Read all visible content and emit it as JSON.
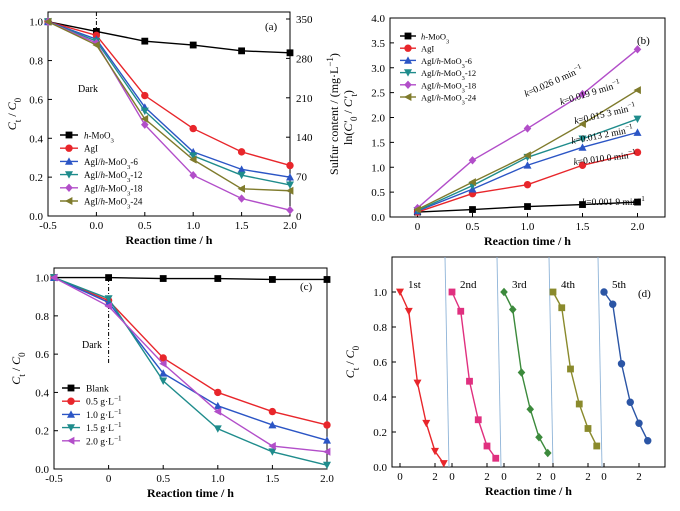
{
  "chart_data": [
    {
      "panel": "(a)",
      "type": "line",
      "xlabel": "Reaction time / h",
      "ylabel": "C_t / C_0",
      "y2label": "Sulfur content / (mg·L⁻¹)",
      "xlim": [
        -0.5,
        2.0
      ],
      "ylim": [
        0.0,
        1.05
      ],
      "y2lim": [
        0,
        350
      ],
      "xticks": [
        "-0.5",
        "0.0",
        "0.5",
        "1.0",
        "1.5",
        "2.0"
      ],
      "yticks": [
        "0.0",
        "0.2",
        "0.4",
        "0.6",
        "0.8",
        "1.0"
      ],
      "y2ticks": [
        "0",
        "70",
        "140",
        "210",
        "280",
        "350"
      ],
      "annotation": "Dark",
      "dark_x": 0,
      "legend_position": "left",
      "series": [
        {
          "name": "h-MoO3",
          "color": "#000000",
          "marker": "square",
          "x": [
            -0.5,
            0,
            0.5,
            1.0,
            1.5,
            2.0
          ],
          "y": [
            1.0,
            0.95,
            0.9,
            0.88,
            0.85,
            0.84
          ]
        },
        {
          "name": "AgI",
          "color": "#e8262b",
          "marker": "circle",
          "x": [
            -0.5,
            0,
            0.5,
            1.0,
            1.5,
            2.0
          ],
          "y": [
            1.0,
            0.93,
            0.62,
            0.45,
            0.33,
            0.26
          ]
        },
        {
          "name": "AgI/h-MoO3-6",
          "color": "#2b55c5",
          "marker": "triangle-up",
          "x": [
            -0.5,
            0,
            0.5,
            1.0,
            1.5,
            2.0
          ],
          "y": [
            1.0,
            0.91,
            0.56,
            0.33,
            0.24,
            0.2
          ]
        },
        {
          "name": "AgI/h-MoO3-12",
          "color": "#1f8c8c",
          "marker": "triangle-down",
          "x": [
            -0.5,
            0,
            0.5,
            1.0,
            1.5,
            2.0
          ],
          "y": [
            1.0,
            0.9,
            0.54,
            0.31,
            0.21,
            0.16
          ]
        },
        {
          "name": "AgI/h-MoO3-18",
          "color": "#b24ec9",
          "marker": "diamond",
          "x": [
            -0.5,
            0,
            0.5,
            1.0,
            1.5,
            2.0
          ],
          "y": [
            1.0,
            0.89,
            0.47,
            0.21,
            0.09,
            0.03
          ]
        },
        {
          "name": "AgI/h-MoO3-24",
          "color": "#7f7b2c",
          "marker": "triangle-left",
          "x": [
            -0.5,
            0,
            0.5,
            1.0,
            1.5,
            2.0
          ],
          "y": [
            1.0,
            0.88,
            0.5,
            0.29,
            0.14,
            0.13
          ]
        }
      ]
    },
    {
      "panel": "(b)",
      "type": "line",
      "xlabel": "Reaction time / h",
      "ylabel": "ln(C'_0 / C'_t)",
      "xlim": [
        -0.25,
        2.25
      ],
      "ylim": [
        0.0,
        4.0
      ],
      "xticks": [
        "0",
        "0.5",
        "1.0",
        "1.5",
        "2.0"
      ],
      "yticks": [
        "0.0",
        "0.5",
        "1.0",
        "1.5",
        "2.0",
        "2.5",
        "3.0",
        "3.5",
        "4.0"
      ],
      "legend_position": "top-left",
      "rate_labels": [
        "k=0.026 0 min⁻¹",
        "k=0.019 9 min⁻¹",
        "k=0.015 3 min⁻¹",
        "k=0.013 2 min⁻¹",
        "k=0.010 0 min⁻¹",
        "k=0.001 9 min⁻¹"
      ],
      "series": [
        {
          "name": "h-MoO3",
          "color": "#000000",
          "marker": "square",
          "x": [
            0,
            0.5,
            1.0,
            1.5,
            2.0
          ],
          "y": [
            0.1,
            0.15,
            0.21,
            0.25,
            0.3
          ]
        },
        {
          "name": "AgI",
          "color": "#e8262b",
          "marker": "circle",
          "x": [
            0,
            0.5,
            1.0,
            1.5,
            2.0
          ],
          "y": [
            0.1,
            0.47,
            0.65,
            1.04,
            1.3
          ]
        },
        {
          "name": "AgI/h-MoO3-6",
          "color": "#2b55c5",
          "marker": "triangle-up",
          "x": [
            0,
            0.5,
            1.0,
            1.5,
            2.0
          ],
          "y": [
            0.12,
            0.56,
            1.04,
            1.4,
            1.7
          ]
        },
        {
          "name": "AgI/h-MoO3-12",
          "color": "#1f8c8c",
          "marker": "triangle-down",
          "x": [
            0,
            0.5,
            1.0,
            1.5,
            2.0
          ],
          "y": [
            0.13,
            0.63,
            1.2,
            1.57,
            1.97
          ]
        },
        {
          "name": "AgI/h-MoO3-18",
          "color": "#b24ec9",
          "marker": "diamond",
          "x": [
            0,
            0.5,
            1.0,
            1.5,
            2.0
          ],
          "y": [
            0.18,
            1.14,
            1.78,
            2.47,
            3.37
          ]
        },
        {
          "name": "AgI/h-MoO3-24",
          "color": "#7f7b2c",
          "marker": "triangle-left",
          "x": [
            0,
            0.5,
            1.0,
            1.5,
            2.0
          ],
          "y": [
            0.15,
            0.7,
            1.24,
            1.87,
            2.55
          ]
        }
      ]
    },
    {
      "panel": "(c)",
      "type": "line",
      "xlabel": "Reaction time / h",
      "ylabel": "C_t / C_0",
      "xlim": [
        -0.5,
        2.0
      ],
      "ylim": [
        0.0,
        1.05
      ],
      "xticks": [
        "-0.5",
        "0",
        "0.5",
        "1.0",
        "1.5",
        "2.0"
      ],
      "yticks": [
        "0.0",
        "0.2",
        "0.4",
        "0.6",
        "0.8",
        "1.0"
      ],
      "annotation": "Dark",
      "dark_x": 0,
      "legend_position": "bottom-left",
      "series": [
        {
          "name": "Blank",
          "color": "#000000",
          "marker": "square",
          "x": [
            -0.5,
            0,
            0.5,
            1.0,
            1.5,
            2.0
          ],
          "y": [
            1.0,
            1.0,
            0.995,
            0.995,
            0.99,
            0.99
          ]
        },
        {
          "name": "0.5 g·L⁻¹",
          "color": "#e8262b",
          "marker": "circle",
          "x": [
            -0.5,
            0,
            0.5,
            1.0,
            1.5,
            2.0
          ],
          "y": [
            1.0,
            0.88,
            0.58,
            0.4,
            0.3,
            0.23
          ]
        },
        {
          "name": "1.0 g·L⁻¹",
          "color": "#2b55c5",
          "marker": "triangle-up",
          "x": [
            -0.5,
            0,
            0.5,
            1.0,
            1.5,
            2.0
          ],
          "y": [
            1.0,
            0.87,
            0.5,
            0.33,
            0.23,
            0.15
          ]
        },
        {
          "name": "1.5 g·L⁻¹",
          "color": "#1f8c8c",
          "marker": "triangle-down",
          "x": [
            -0.5,
            0,
            0.5,
            1.0,
            1.5,
            2.0
          ],
          "y": [
            1.0,
            0.89,
            0.46,
            0.21,
            0.09,
            0.02
          ]
        },
        {
          "name": "2.0 g·L⁻¹",
          "color": "#b24ec9",
          "marker": "triangle-left",
          "x": [
            -0.5,
            0,
            0.5,
            1.0,
            1.5,
            2.0
          ],
          "y": [
            1.0,
            0.85,
            0.55,
            0.3,
            0.12,
            0.09
          ]
        }
      ]
    },
    {
      "panel": "(d)",
      "type": "line",
      "xlabel": "Reaction time / h",
      "ylabel": "C_t / C_0",
      "ylim": [
        0.0,
        1.2
      ],
      "yticks": [
        "0.0",
        "0.2",
        "0.4",
        "0.6",
        "0.8",
        "1.0"
      ],
      "cycle_xticks": [
        "0",
        "2"
      ],
      "cycle_span_h": [
        0,
        2.5
      ],
      "series": [
        {
          "name": "1st",
          "color": "#e8262b",
          "marker": "triangle-down",
          "x": [
            0,
            0.5,
            1.0,
            1.5,
            2.0,
            2.5
          ],
          "y": [
            1.0,
            0.89,
            0.48,
            0.25,
            0.09,
            0.02
          ]
        },
        {
          "name": "2nd",
          "color": "#e0307f",
          "marker": "square",
          "x": [
            0,
            0.5,
            1.0,
            1.5,
            2.0,
            2.5
          ],
          "y": [
            1.0,
            0.89,
            0.49,
            0.27,
            0.12,
            0.05
          ]
        },
        {
          "name": "3rd",
          "color": "#3c8a3c",
          "marker": "diamond",
          "x": [
            0,
            0.5,
            1.0,
            1.5,
            2.0,
            2.5
          ],
          "y": [
            1.0,
            0.9,
            0.54,
            0.33,
            0.17,
            0.08
          ]
        },
        {
          "name": "4th",
          "color": "#8a8a2c",
          "marker": "square",
          "x": [
            0,
            0.5,
            1.0,
            1.5,
            2.0,
            2.5
          ],
          "y": [
            1.0,
            0.91,
            0.56,
            0.36,
            0.22,
            0.12
          ]
        },
        {
          "name": "5th",
          "color": "#2b55a5",
          "marker": "circle",
          "x": [
            0,
            0.5,
            1.0,
            1.5,
            2.0,
            2.5
          ],
          "y": [
            1.0,
            0.93,
            0.59,
            0.37,
            0.25,
            0.15
          ]
        }
      ]
    }
  ]
}
